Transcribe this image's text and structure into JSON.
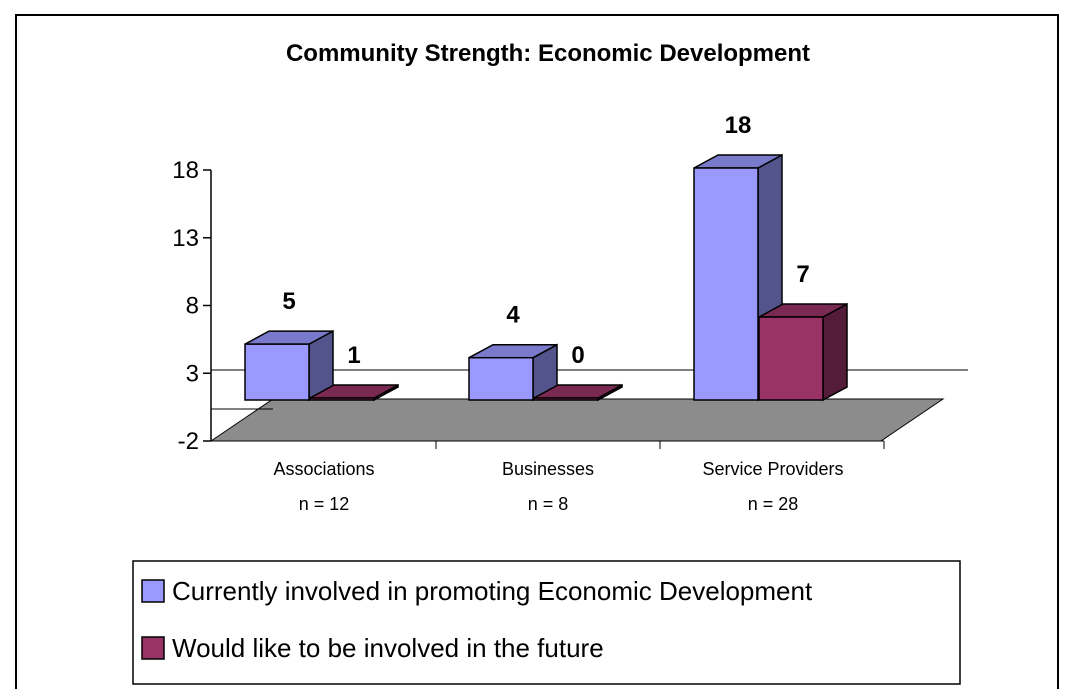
{
  "chart_data": {
    "type": "bar",
    "title": "Community Strength: Economic Development",
    "categories": [
      "Associations",
      "Businesses",
      "Service Providers"
    ],
    "category_sublabels": [
      "n = 12",
      "n = 8",
      "n = 28"
    ],
    "series": [
      {
        "name": "Currently involved in promoting Economic Development",
        "values": [
          5,
          4,
          18
        ],
        "color": "#9999ff"
      },
      {
        "name": "Would like to be involved in the future",
        "values": [
          1,
          0,
          7
        ],
        "color": "#993366"
      }
    ],
    "yticks": [
      "18",
      "13",
      "8",
      "3",
      "-2"
    ],
    "ylim": [
      -2,
      18
    ],
    "three_d": true,
    "grid": true,
    "legend_position": "bottom"
  }
}
